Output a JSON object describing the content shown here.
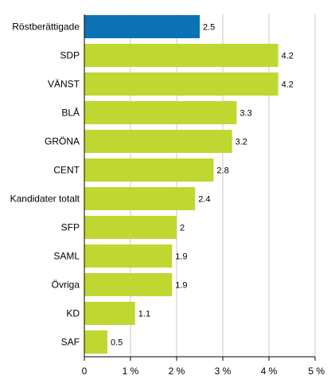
{
  "chart_data": {
    "type": "bar",
    "orientation": "horizontal",
    "categories": [
      "Röstberättigade",
      "SDP",
      "VÄNST",
      "BLÅ",
      "GRÖNA",
      "CENT",
      "Kandidater totalt",
      "SFP",
      "SAML",
      "Övriga",
      "KD",
      "SAF"
    ],
    "values": [
      2.5,
      4.2,
      4.2,
      3.3,
      3.2,
      2.8,
      2.4,
      2.0,
      1.9,
      1.9,
      1.1,
      0.5
    ],
    "value_labels": [
      "2.5",
      "4.2",
      "4.2",
      "3.3",
      "3.2",
      "2.8",
      "2.4",
      "2",
      "1.9",
      "1.9",
      "1.1",
      "0.5"
    ],
    "highlight_index": 0,
    "xlim": [
      0,
      5
    ],
    "x_ticks": [
      0,
      1,
      2,
      3,
      4,
      5
    ],
    "x_tick_labels": [
      "0",
      "1 %",
      "2 %",
      "3 %",
      "4 %",
      "5 %"
    ],
    "grid": "vertical",
    "colors": {
      "bar": "#bfd730",
      "highlight": "#0b72b5",
      "grid": "#c8c8c8",
      "axis": "#000000"
    }
  }
}
